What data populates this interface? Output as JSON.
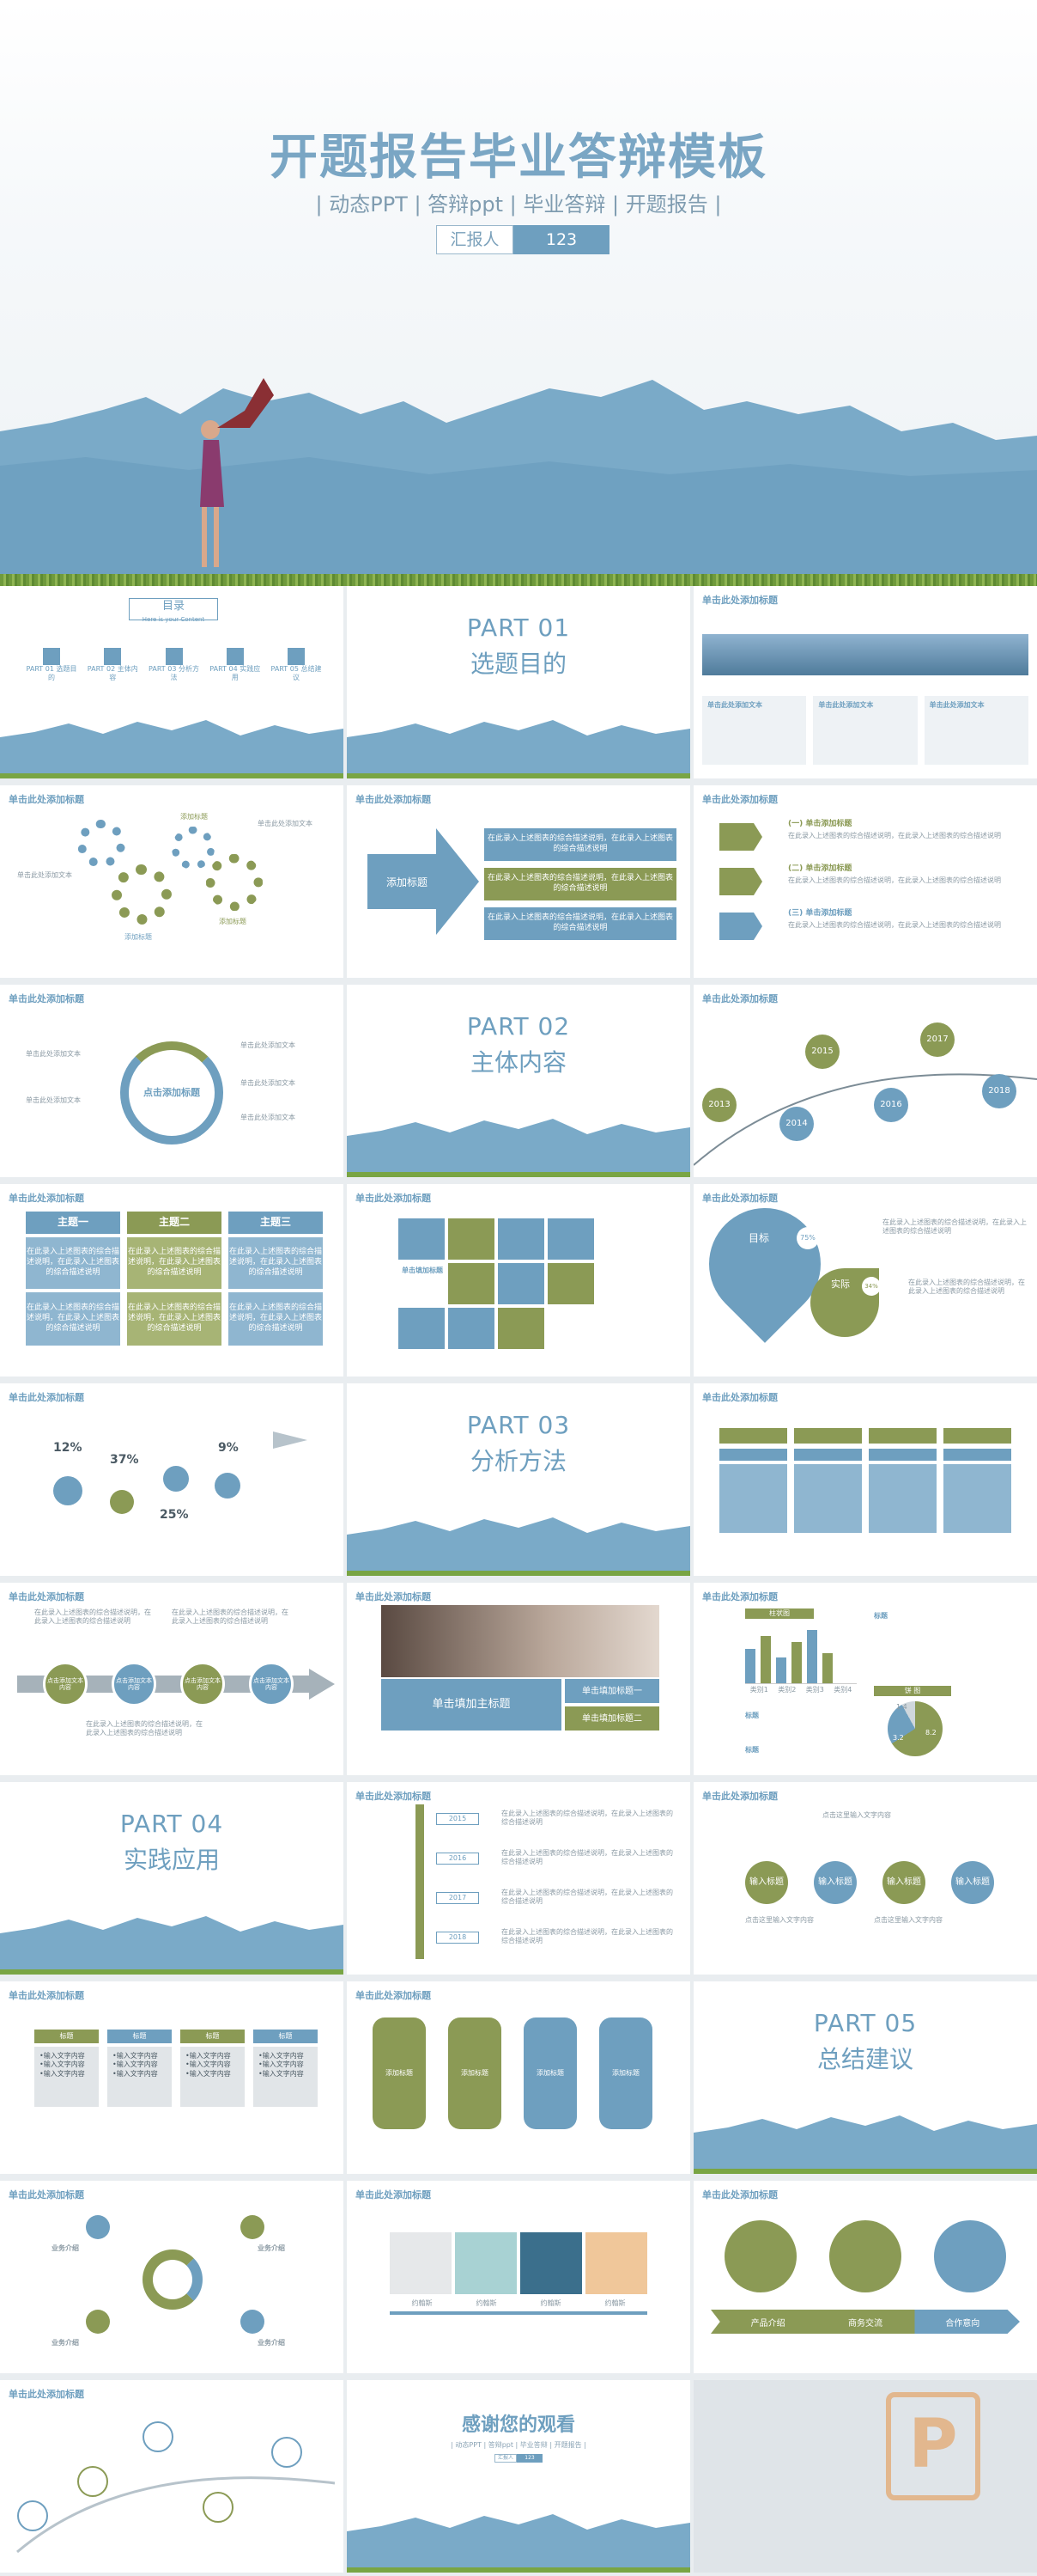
{
  "hero": {
    "title": "开题报告毕业答辩模板",
    "subtitle": "| 动态PPT | 答辩ppt | 毕业答辩 | 开题报告 |",
    "reporter_label": "汇报人",
    "reporter_value": "123"
  },
  "common": {
    "slide_header": "单击此处添加标题",
    "placeholder": "单击此处添加文本",
    "long_text": "在此录入上述图表的综合描述说明，在此录入上述图表的综合描述说明"
  },
  "toc": {
    "title": "目录",
    "subtitle": "Here is your Content",
    "items": [
      "PART 01 选题目的",
      "PART 02 主体内容",
      "PART 03 分析方法",
      "PART 04 实践应用",
      "PART 05 总结建议"
    ]
  },
  "parts": [
    {
      "num": "PART 01",
      "name": "选题目的"
    },
    {
      "num": "PART 02",
      "name": "主体内容"
    },
    {
      "num": "PART 03",
      "name": "分析方法"
    },
    {
      "num": "PART 04",
      "name": "实践应用"
    },
    {
      "num": "PART 05",
      "name": "总结建议"
    }
  ],
  "gears": {
    "labels": [
      "添加标题",
      "添加标题",
      "添加标题"
    ]
  },
  "arrow_slide": {
    "label": "添加标题"
  },
  "steps_slide": {
    "items": [
      "(一) 单击添加标题",
      "(二) 单击添加标题",
      "(三) 单击添加标题"
    ]
  },
  "donut_slide": {
    "center": "点击添加标题"
  },
  "timeline1": {
    "years": [
      "2013",
      "2014",
      "2015",
      "2016",
      "2017",
      "2018"
    ]
  },
  "themes": {
    "items": [
      "主题一",
      "主题二",
      "主题三"
    ]
  },
  "icon_grid": {
    "label": "单击填加标题"
  },
  "target_slide": {
    "goal": "目标",
    "goal_pct": "75%",
    "actual": "实际",
    "actual_pct": "34%"
  },
  "percent_slide": {
    "values": [
      "12%",
      "37%",
      "25%",
      "9%"
    ]
  },
  "process_slide": {
    "label": "点击添加文本内容"
  },
  "photo_slide": {
    "main": "单击填加主标题",
    "sub1": "单击填加标题一",
    "sub2": "单击填加标题二"
  },
  "chart_slide": {
    "bar_title": "柱状图",
    "categories": [
      "类别1",
      "类别2",
      "类别3",
      "类别4"
    ],
    "pie_title": "饼 图",
    "pie_values": [
      "1.4",
      "3.2",
      "8.2"
    ],
    "side_label": "标题"
  },
  "timeline2": {
    "years": [
      "2015",
      "2016",
      "2017",
      "2018"
    ]
  },
  "flow_slide": {
    "items": [
      "输入标题",
      "输入标题",
      "输入标题",
      "输入标题"
    ],
    "text": "点击这里输入文字内容"
  },
  "table_slide": {
    "header": "标题",
    "rows": [
      "•输入文字内容",
      "•输入文字内容",
      "•输入文字内容"
    ]
  },
  "card_flow": {
    "label": "添加标题"
  },
  "circle_slide": {
    "label": "业务介绍"
  },
  "team_slide": {
    "names": [
      "约翰斯",
      "约翰斯",
      "约翰斯",
      "约翰斯"
    ]
  },
  "ribbon_slide": {
    "items": [
      "产品介绍",
      "商务交流",
      "合作意向"
    ]
  },
  "end_slide": {
    "title": "感谢您的观看",
    "subtitle": "| 动态PPT | 答辩ppt | 毕业答辩 | 开题报告 |"
  }
}
